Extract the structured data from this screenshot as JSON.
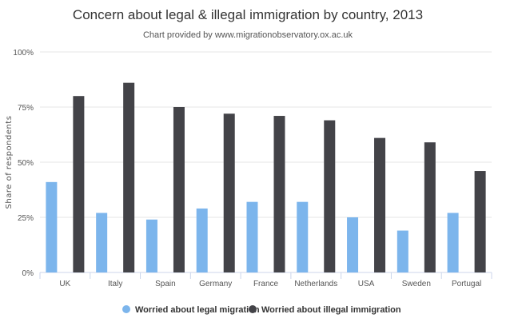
{
  "chart_data": {
    "type": "bar",
    "title": "Concern about legal & illegal immigration by country, 2013",
    "subtitle": "Chart provided by www.migrationobservatory.ox.ac.uk",
    "xlabel": "",
    "ylabel": "Share of respondents",
    "ylim": [
      0,
      100
    ],
    "yticks": [
      "0%",
      "25%",
      "50%",
      "75%",
      "100%"
    ],
    "ytick_values": [
      0,
      25,
      50,
      75,
      100
    ],
    "categories": [
      "UK",
      "Italy",
      "Spain",
      "Germany",
      "France",
      "Netherlands",
      "USA",
      "Sweden",
      "Portugal"
    ],
    "series": [
      {
        "name": "Worried about legal migration",
        "color": "#7cb5ec",
        "values": [
          41,
          27,
          24,
          29,
          32,
          32,
          25,
          19,
          27
        ]
      },
      {
        "name": "Worried about illegal immigration",
        "color": "#434348",
        "values": [
          80,
          86,
          75,
          72,
          71,
          69,
          61,
          59,
          46
        ]
      }
    ],
    "grid": true,
    "legend_position": "bottom"
  }
}
